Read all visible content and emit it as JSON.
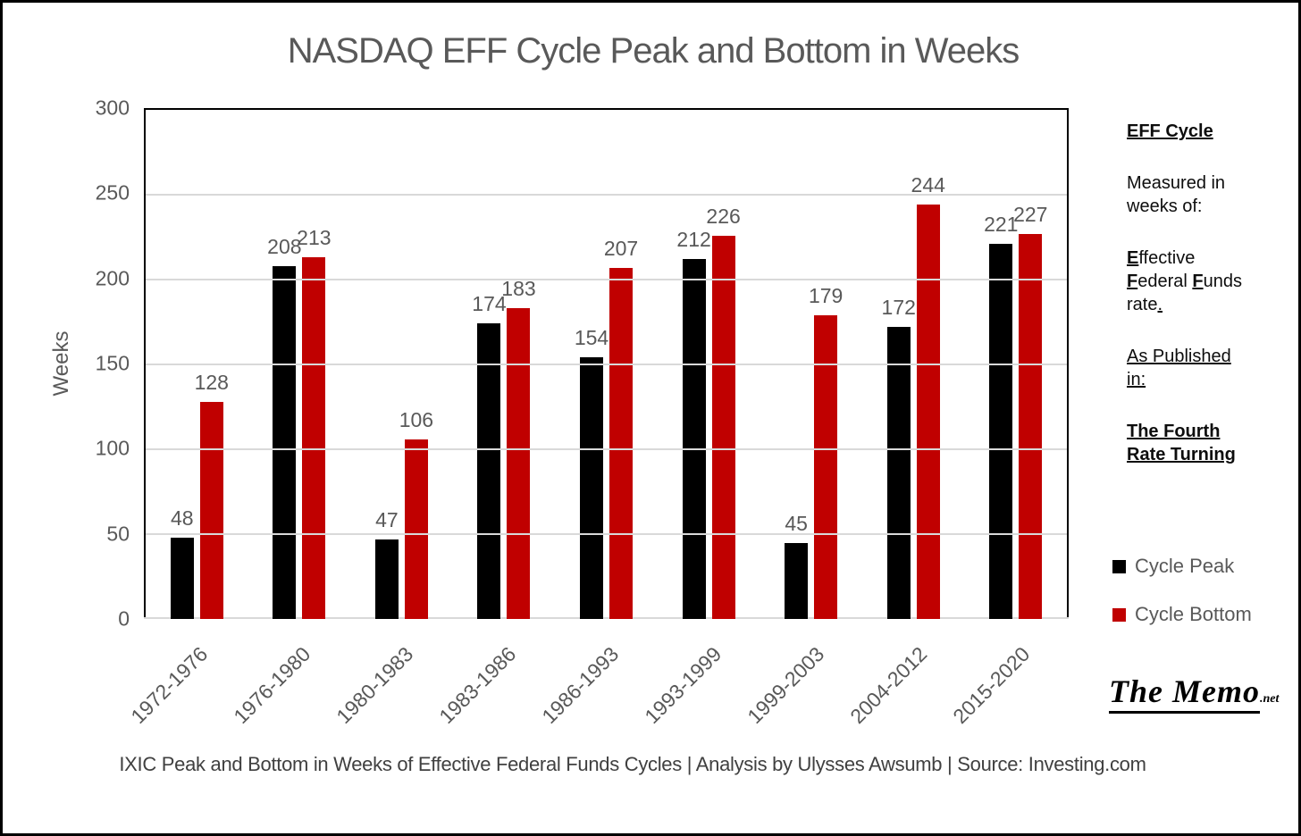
{
  "chart_data": {
    "type": "bar",
    "title": "NASDAQ EFF Cycle Peak and Bottom in Weeks",
    "categories": [
      "1972-1976",
      "1976-1980",
      "1980-1983",
      "1983-1986",
      "1986-1993",
      "1993-1999",
      "1999-2003",
      "2004-2012",
      "2015-2020"
    ],
    "series": [
      {
        "name": "Cycle Peak",
        "color": "#000000",
        "values": [
          48,
          208,
          47,
          174,
          154,
          212,
          45,
          172,
          221
        ]
      },
      {
        "name": "Cycle Bottom",
        "color": "#c00000",
        "values": [
          128,
          213,
          106,
          183,
          207,
          226,
          179,
          244,
          227
        ]
      }
    ],
    "xlabel": "",
    "ylabel": "Weeks",
    "ylim": [
      0,
      300
    ],
    "ytick_step": 50,
    "grid": true,
    "legend_position": "right",
    "bar_value_labels": "outside-end"
  },
  "side_panel": {
    "heading": "EFF Cycle",
    "measured_line1": "Measured in",
    "measured_line2": "weeks of:",
    "eff_initial": "E",
    "eff_rest": "ffective",
    "fed_initial": "F",
    "fed_rest": "ederal ",
    "funds_initial": "F",
    "funds_rest": "unds",
    "rate_text": "rate",
    "rate_period": ".",
    "published_line1": "As Published",
    "published_line2": "in:",
    "book_line1": "The Fourth",
    "book_line2": "Rate Turning"
  },
  "branding": {
    "logo_text": "The Memo",
    "logo_suffix": ".net"
  },
  "caption": {
    "line1": "IXIC Peak and Bottom in Weeks of Effective Federal Funds Cycles | Analysis by Ulysses Awsumb | Source:",
    "line2": "Investing.com"
  },
  "colors": {
    "axis_text": "#595959",
    "gridline": "#d9d9d9",
    "caption_text": "#404040",
    "panel_text": "#0d0d0d",
    "peak_bar": "#000000",
    "bottom_bar": "#c00000"
  }
}
